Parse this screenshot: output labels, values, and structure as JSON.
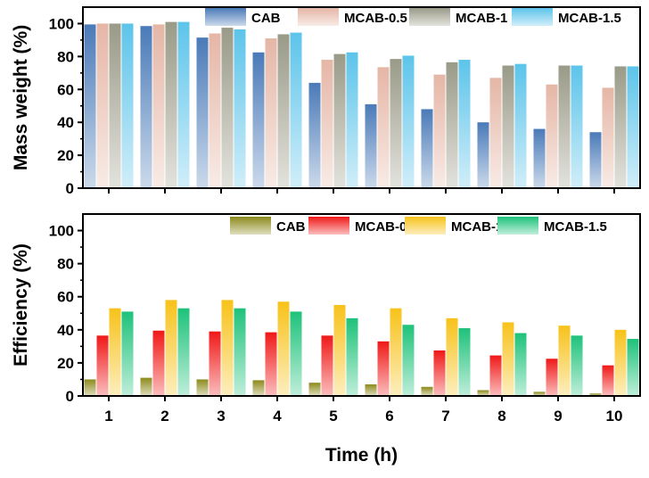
{
  "chart_data": [
    {
      "type": "bar",
      "ylabel": "Mass weight (%)",
      "ylim": [
        0,
        110
      ],
      "yticks": [
        0,
        20,
        40,
        60,
        80,
        100
      ],
      "categories": [
        "1",
        "2",
        "3",
        "4",
        "5",
        "6",
        "7",
        "8",
        "9",
        "10"
      ],
      "legend_position": "top-right",
      "series": [
        {
          "name": "CAB",
          "color": "#4a7ab8",
          "values": [
            99.5,
            98.5,
            91.5,
            82.5,
            64,
            51,
            48,
            40,
            36,
            34
          ]
        },
        {
          "name": "MCAB-0.5",
          "color": "#e5b6a6",
          "values": [
            100,
            99.5,
            94,
            91,
            78,
            73.5,
            69,
            67,
            63,
            61
          ]
        },
        {
          "name": "MCAB-1",
          "color": "#9a9a88",
          "values": [
            100,
            101,
            97.5,
            93.5,
            81.5,
            78.5,
            76.5,
            74.5,
            74.5,
            74
          ]
        },
        {
          "name": "MCAB-1.5",
          "color": "#5cc4ea",
          "values": [
            100,
            101,
            96.5,
            94.5,
            82.5,
            80.5,
            78,
            75.5,
            74.5,
            74
          ]
        }
      ]
    },
    {
      "type": "bar",
      "ylabel": "Efficiency (%)",
      "xlabel": "Time (h)",
      "ylim": [
        0,
        110
      ],
      "yticks": [
        0,
        20,
        40,
        60,
        80,
        100
      ],
      "categories": [
        "1",
        "2",
        "3",
        "4",
        "5",
        "6",
        "7",
        "8",
        "9",
        "10"
      ],
      "legend_position": "top-right",
      "series": [
        {
          "name": "CAB",
          "color": "#8c8a1c",
          "values": [
            10,
            11,
            10,
            9.5,
            8,
            7,
            5.5,
            3.5,
            2.5,
            1.5
          ]
        },
        {
          "name": "MCAB-0.5",
          "color": "#f01818",
          "values": [
            36.5,
            39.5,
            39,
            38.5,
            36.5,
            33,
            27.5,
            24.5,
            22.5,
            18.5
          ]
        },
        {
          "name": "MCAB-1",
          "color": "#f7c21a",
          "values": [
            53,
            58,
            58,
            57,
            55,
            53,
            47,
            44.5,
            42.5,
            40
          ]
        },
        {
          "name": "MCAB-1.5",
          "color": "#1ec27a",
          "values": [
            51,
            53,
            53,
            51,
            47,
            43,
            41,
            38,
            36.5,
            34.5
          ]
        }
      ]
    }
  ]
}
